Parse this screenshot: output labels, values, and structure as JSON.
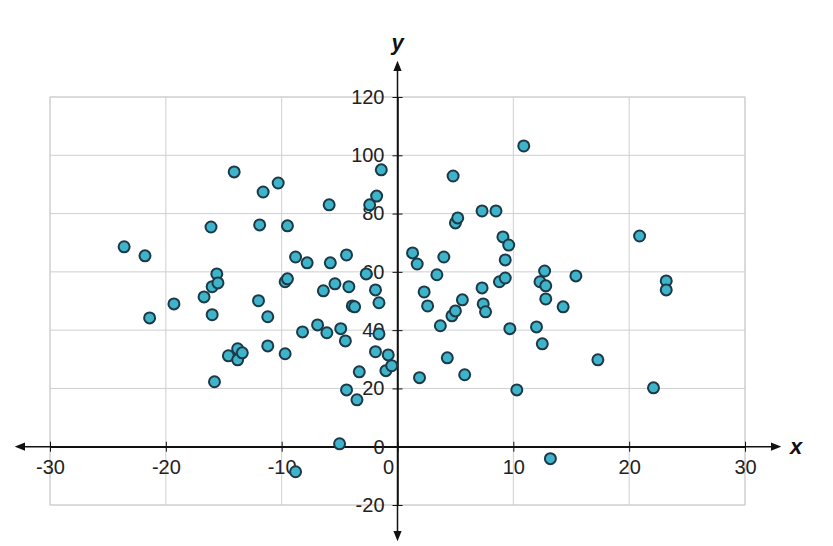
{
  "chart_data": {
    "type": "scatter",
    "x_label": "x",
    "y_label": "y",
    "xlim": [
      -30,
      30
    ],
    "ylim": [
      -20,
      120
    ],
    "xticks": [
      -30,
      -20,
      -10,
      0,
      10,
      20,
      30
    ],
    "yticks": [
      -20,
      0,
      20,
      40,
      60,
      80,
      100,
      120
    ],
    "grid": true,
    "color": "#3db4c9",
    "marker": "circle",
    "x": [
      -23.6,
      -21.8,
      -21.4,
      -19.3,
      -16.7,
      -16.1,
      -16.0,
      -15.6,
      -15.5,
      -16.0,
      -15.8,
      -14.6,
      -14.1,
      -13.8,
      -13.8,
      -13.4,
      -12.0,
      -11.9,
      -11.6,
      -11.2,
      -11.2,
      -10.3,
      -9.7,
      -9.7,
      -9.5,
      -9.5,
      -8.8,
      -8.8,
      -8.2,
      -7.8,
      -6.9,
      -6.4,
      -6.1,
      -5.9,
      -5.8,
      -5.4,
      -5.0,
      -4.9,
      -4.5,
      -4.4,
      -4.4,
      -4.2,
      -3.9,
      -3.7,
      -3.5,
      -3.3,
      -2.7,
      -2.4,
      -1.9,
      -1.9,
      -1.8,
      -1.6,
      -1.6,
      -1.4,
      -1.0,
      -0.8,
      -0.5,
      1.3,
      1.7,
      1.9,
      2.3,
      2.6,
      3.4,
      3.7,
      4.0,
      4.3,
      4.7,
      4.8,
      5.0,
      5.0,
      5.2,
      5.6,
      5.8,
      7.3,
      7.3,
      7.4,
      7.6,
      8.5,
      8.8,
      9.1,
      9.3,
      9.3,
      9.6,
      9.7,
      10.3,
      10.9,
      12.0,
      12.3,
      12.5,
      12.7,
      12.8,
      12.8,
      13.2,
      14.3,
      15.4,
      17.3,
      20.9,
      22.1,
      23.2,
      23.2
    ],
    "values": [
      68.6,
      65.5,
      44.2,
      49.0,
      51.4,
      75.4,
      54.9,
      59.3,
      56.2,
      45.3,
      22.3,
      31.2,
      94.3,
      33.6,
      29.8,
      32.2,
      50.1,
      76.1,
      87.4,
      34.6,
      44.6,
      90.5,
      31.9,
      56.6,
      57.6,
      75.8,
      65.1,
      -8.6,
      39.4,
      63.1,
      41.8,
      53.5,
      39.1,
      83.0,
      63.1,
      55.9,
      1.0,
      40.5,
      36.3,
      65.8,
      19.5,
      54.9,
      48.3,
      48.0,
      16.1,
      25.7,
      59.3,
      83.0,
      53.8,
      32.6,
      86.0,
      49.4,
      38.7,
      95.0,
      26.1,
      31.5,
      27.8,
      66.5,
      62.7,
      23.7,
      53.1,
      48.3,
      59.0,
      41.5,
      65.1,
      30.5,
      44.9,
      92.9,
      76.8,
      46.6,
      78.5,
      50.4,
      24.7,
      80.9,
      54.5,
      49.0,
      46.3,
      80.9,
      56.6,
      72.0,
      64.1,
      57.9,
      69.2,
      40.5,
      19.5,
      103.2,
      41.1,
      56.6,
      35.3,
      60.3,
      55.2,
      50.7,
      -4.1,
      48.0,
      58.6,
      29.8,
      72.3,
      20.2,
      56.9,
      53.8
    ]
  }
}
